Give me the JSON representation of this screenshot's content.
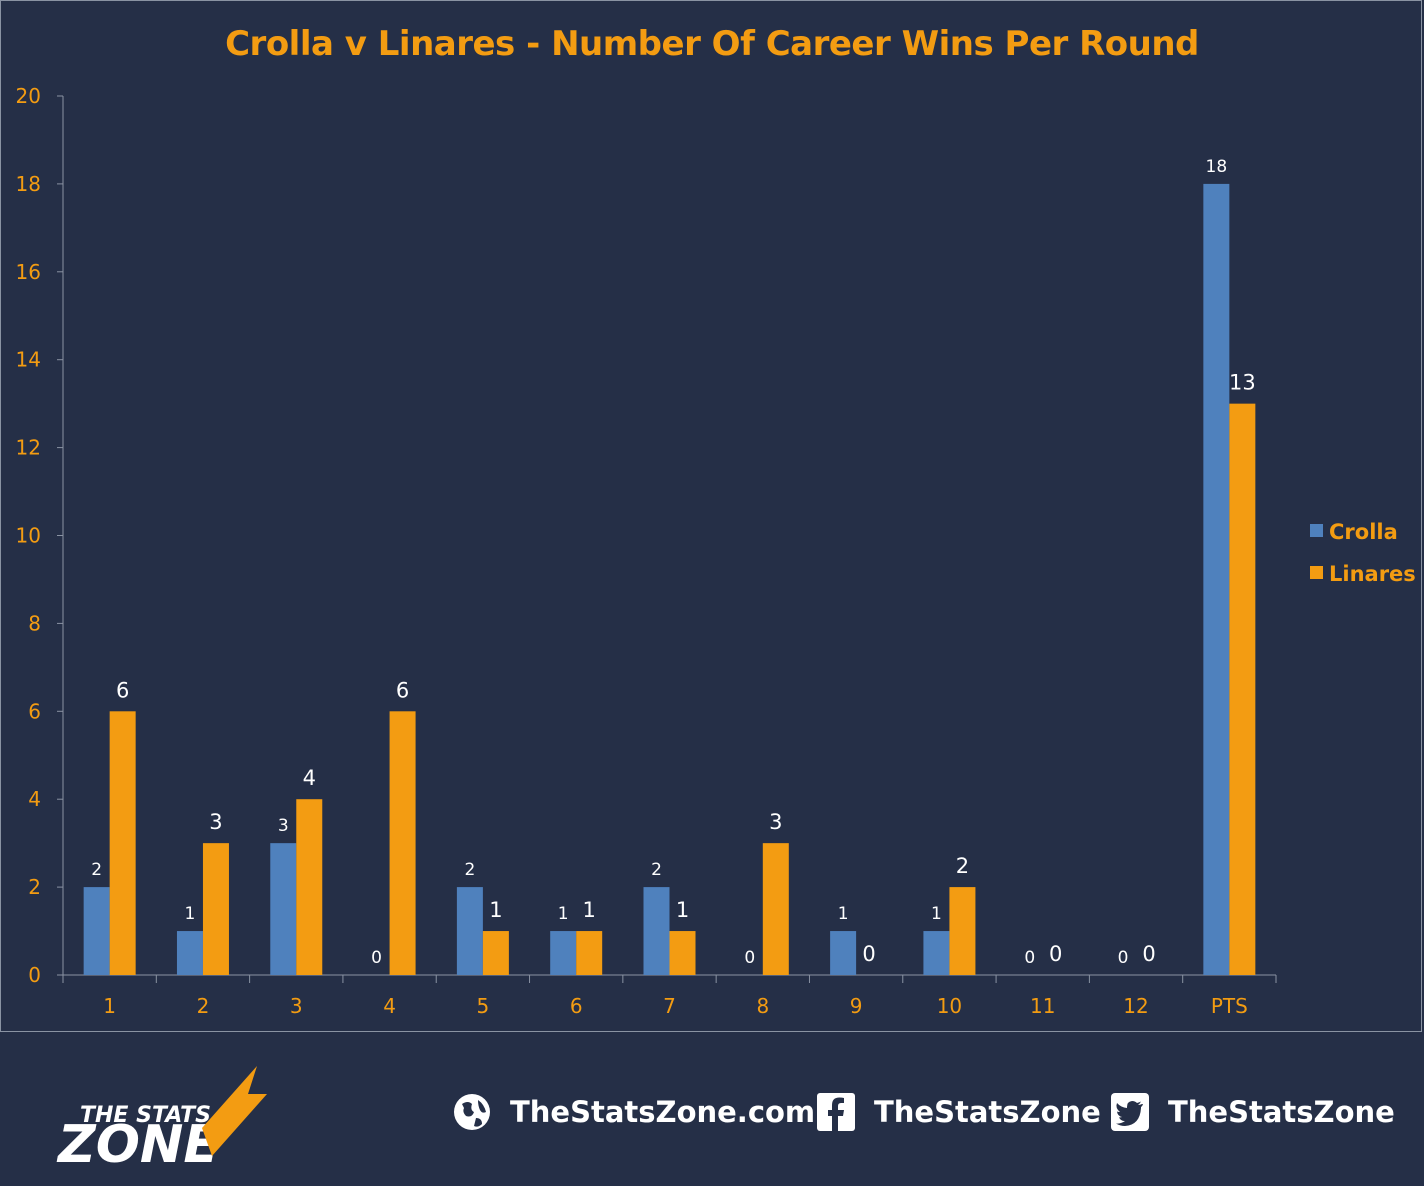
{
  "chart_data": {
    "type": "bar",
    "title": "Crolla v Linares - Number Of Career Wins Per Round",
    "categories": [
      "1",
      "2",
      "3",
      "4",
      "5",
      "6",
      "7",
      "8",
      "9",
      "10",
      "11",
      "12",
      "PTS"
    ],
    "series": [
      {
        "name": "Crolla",
        "color": "#4f81bd",
        "values": [
          2,
          1,
          3,
          0,
          2,
          1,
          2,
          0,
          1,
          1,
          0,
          0,
          18
        ]
      },
      {
        "name": "Linares",
        "color": "#f39c12",
        "values": [
          6,
          3,
          4,
          6,
          1,
          1,
          1,
          3,
          0,
          2,
          0,
          0,
          13
        ]
      }
    ],
    "ylim": [
      0,
      20
    ],
    "yticks": [
      0,
      2,
      4,
      6,
      8,
      10,
      12,
      14,
      16,
      18,
      20
    ],
    "grid": false,
    "legend": "right"
  },
  "footer": {
    "brand_line1": "THE STATS",
    "brand_line2": "ZONE",
    "website": "TheStatsZone.com",
    "facebook": "TheStatsZone",
    "twitter": "TheStatsZone",
    "icons": [
      "globe-icon",
      "facebook-icon",
      "twitter-icon"
    ]
  }
}
